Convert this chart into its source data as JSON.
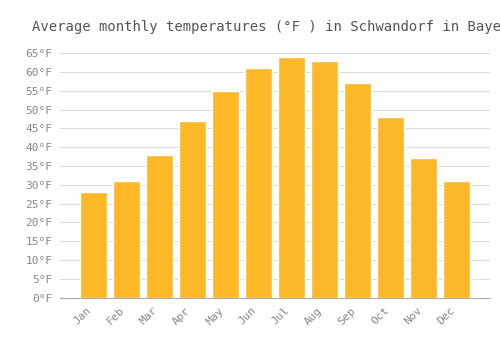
{
  "title": "Average monthly temperatures (°F ) in Schwandorf in Bayern",
  "months": [
    "Jan",
    "Feb",
    "Mar",
    "Apr",
    "May",
    "Jun",
    "Jul",
    "Aug",
    "Sep",
    "Oct",
    "Nov",
    "Dec"
  ],
  "values": [
    28,
    31,
    38,
    47,
    55,
    61,
    64,
    63,
    57,
    48,
    37,
    31
  ],
  "bar_color": "#FDB827",
  "bar_edge_color": "#ffffff",
  "background_color": "#ffffff",
  "grid_color": "#dddddd",
  "text_color": "#888888",
  "title_color": "#555555",
  "ylim": [
    0,
    68
  ],
  "yticks": [
    0,
    5,
    10,
    15,
    20,
    25,
    30,
    35,
    40,
    45,
    50,
    55,
    60,
    65
  ],
  "title_fontsize": 10,
  "tick_fontsize": 8,
  "bar_width": 0.82
}
